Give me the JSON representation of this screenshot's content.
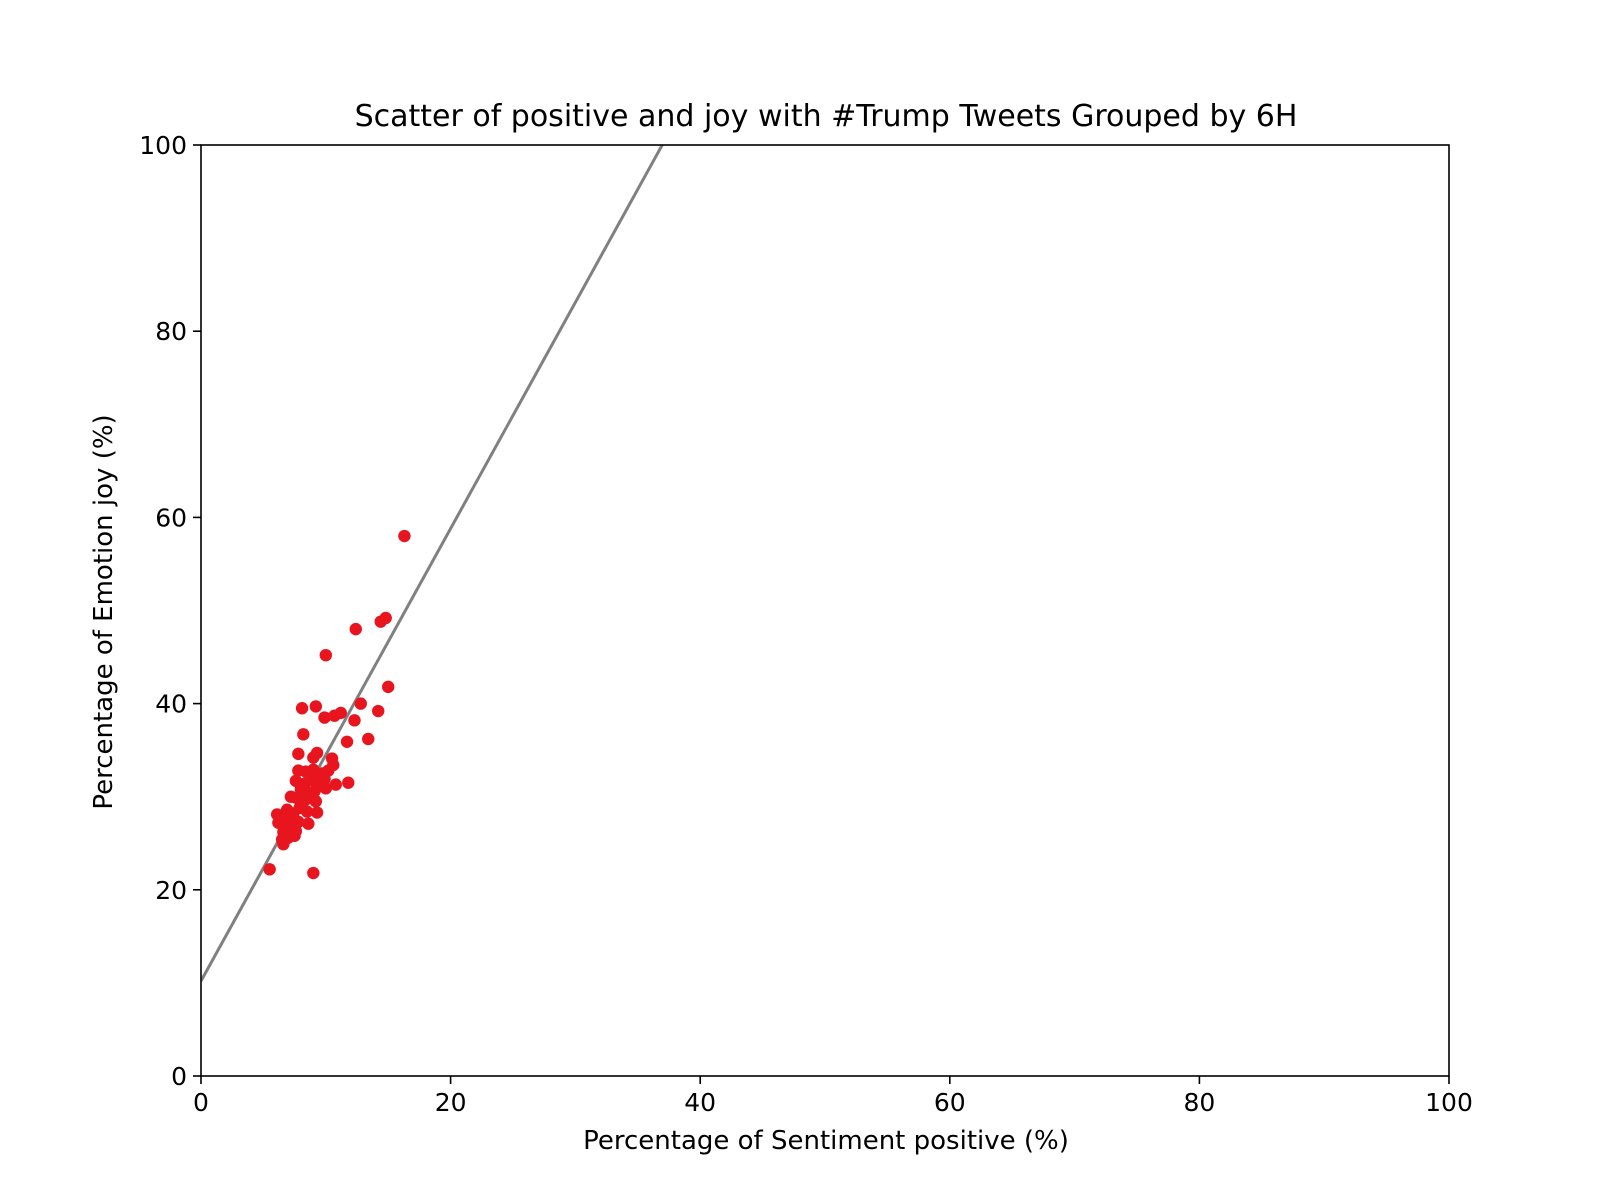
{
  "chart_data": {
    "type": "scatter",
    "title": "Scatter of positive and joy with #Trump Tweets Grouped by 6H",
    "xlabel": "Percentage of Sentiment positive (%)",
    "ylabel": "Percentage of Emotion joy (%)",
    "xlim": [
      0,
      100
    ],
    "ylim": [
      0,
      100
    ],
    "xticks": [
      0,
      20,
      40,
      60,
      80,
      100
    ],
    "yticks": [
      0,
      20,
      40,
      60,
      80,
      100
    ],
    "grid": false,
    "point_color": "#e8141e",
    "line_color": "#808080",
    "trend_line": {
      "slope": 2.43,
      "intercept": 10.2
    },
    "points": [
      [
        5.5,
        22.2
      ],
      [
        9.0,
        21.8
      ],
      [
        16.3,
        58.0
      ],
      [
        12.4,
        48.0
      ],
      [
        14.4,
        48.8
      ],
      [
        14.8,
        49.2
      ],
      [
        10.0,
        45.2
      ],
      [
        15.0,
        41.8
      ],
      [
        8.1,
        39.5
      ],
      [
        9.2,
        39.7
      ],
      [
        9.9,
        38.5
      ],
      [
        10.7,
        38.7
      ],
      [
        11.2,
        39.0
      ],
      [
        12.8,
        40.0
      ],
      [
        14.2,
        39.2
      ],
      [
        12.3,
        38.2
      ],
      [
        8.2,
        36.7
      ],
      [
        11.7,
        35.9
      ],
      [
        13.4,
        36.2
      ],
      [
        7.8,
        34.6
      ],
      [
        9.0,
        34.2
      ],
      [
        9.3,
        34.7
      ],
      [
        10.5,
        34.1
      ],
      [
        10.6,
        33.4
      ],
      [
        7.8,
        32.8
      ],
      [
        8.4,
        32.7
      ],
      [
        9.0,
        32.9
      ],
      [
        9.7,
        32.5
      ],
      [
        10.2,
        32.8
      ],
      [
        7.6,
        31.7
      ],
      [
        8.3,
        31.4
      ],
      [
        8.9,
        31.8
      ],
      [
        9.4,
        31.5
      ],
      [
        9.9,
        31.9
      ],
      [
        10.8,
        31.3
      ],
      [
        11.8,
        31.5
      ],
      [
        8.0,
        30.8
      ],
      [
        8.6,
        30.4
      ],
      [
        9.1,
        30.6
      ],
      [
        10.0,
        30.9
      ],
      [
        7.2,
        30.0
      ],
      [
        7.6,
        29.9
      ],
      [
        8.4,
        29.7
      ],
      [
        9.2,
        29.5
      ],
      [
        6.9,
        28.6
      ],
      [
        7.4,
        28.2
      ],
      [
        7.9,
        28.8
      ],
      [
        8.5,
        28.4
      ],
      [
        9.3,
        28.3
      ],
      [
        6.1,
        28.1
      ],
      [
        6.7,
        27.8
      ],
      [
        7.2,
        27.6
      ],
      [
        7.8,
        27.3
      ],
      [
        6.2,
        27.2
      ],
      [
        6.8,
        27.0
      ],
      [
        7.3,
        26.9
      ],
      [
        8.6,
        27.1
      ],
      [
        6.6,
        26.2
      ],
      [
        7.1,
        26.4
      ],
      [
        7.6,
        26.3
      ],
      [
        6.5,
        25.4
      ],
      [
        7.0,
        25.6
      ],
      [
        7.5,
        25.8
      ],
      [
        6.6,
        24.9
      ]
    ]
  }
}
